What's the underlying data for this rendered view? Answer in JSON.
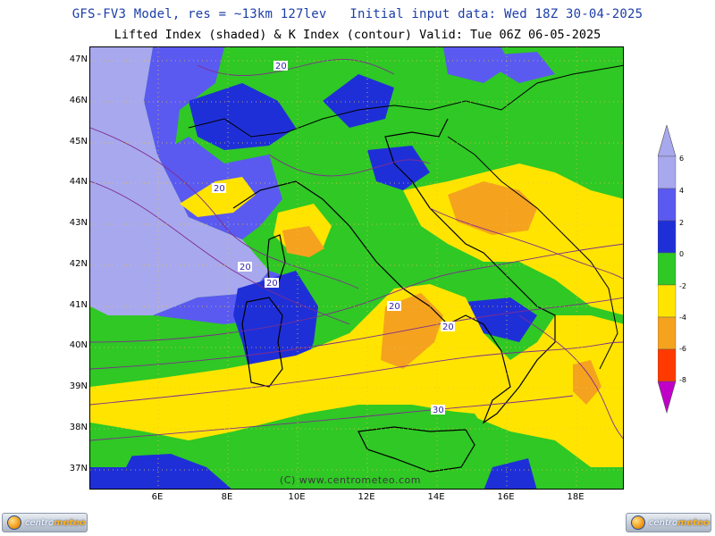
{
  "header": {
    "title": "GFS-FV3 Model, res = ~13km 127lev   Initial input data: Wed 18Z 30-04-2025",
    "subtitle": "Lifted Index (shaded) & K Index (contour) Valid: Tue 06Z 06-05-2025"
  },
  "map": {
    "lat_labels": [
      "47N",
      "46N",
      "45N",
      "44N",
      "43N",
      "42N",
      "41N",
      "40N",
      "39N",
      "38N",
      "37N"
    ],
    "lon_labels": [
      "6E",
      "8E",
      "10E",
      "12E",
      "14E",
      "16E",
      "18E"
    ],
    "contour_labels": [
      "20",
      "20",
      "20",
      "20",
      "20",
      "20",
      "30"
    ],
    "watermark": "(C) www.centrometeo.com",
    "colors": {
      "li_gt_6": "#a8a8ee",
      "li_4_6": "#5a5af0",
      "li_2_4": "#1f2fd8",
      "li_0_2": "#2fc825",
      "li_m2_0": "#ffe400",
      "li_m4_m2": "#f5a21f",
      "contour": "#7e2f8e"
    }
  },
  "colorbar": {
    "labels": [
      "6",
      "4",
      "2",
      "0",
      "-2",
      "-4",
      "-6",
      "-8"
    ],
    "colors": [
      "#a8a8ee",
      "#5a5af0",
      "#1f2fd8",
      "#2fc825",
      "#ffe400",
      "#f5a21f",
      "#ff3a00",
      "#c40000",
      "#c000c8"
    ]
  },
  "logos": {
    "left": {
      "brand_a": "centro",
      "brand_b": "meteo"
    },
    "right": {
      "brand_a": "centro",
      "brand_b": "meteo"
    }
  }
}
